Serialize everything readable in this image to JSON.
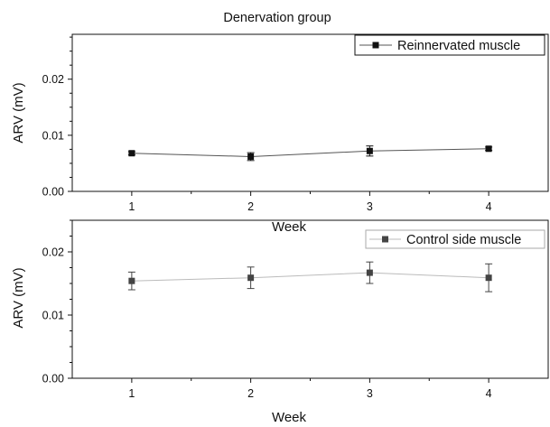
{
  "figure_title": "Denervation group",
  "chart_data": [
    {
      "type": "line",
      "title": "",
      "xlabel": "Week",
      "ylabel": "ARV (mV)",
      "x": [
        1,
        2,
        3,
        4
      ],
      "xlim": [
        0.5,
        4.5
      ],
      "ylim": [
        0,
        0.028
      ],
      "x_ticks": [
        "1",
        "2",
        "3",
        "4"
      ],
      "y_ticks": [
        "0.00",
        "0.01",
        "0.02"
      ],
      "y_tick_values": [
        0,
        0.01,
        0.02
      ],
      "grid": false,
      "legend_position": "top-right",
      "series": [
        {
          "name": "Reinnervated muscle",
          "values": [
            0.0068,
            0.0062,
            0.0072,
            0.0076
          ],
          "errors": [
            0.0003,
            0.0007,
            0.0009,
            0.0003
          ],
          "color": "#111111",
          "line_color": "#555555",
          "marker": "square"
        }
      ]
    },
    {
      "type": "line",
      "title": "",
      "xlabel": "Week",
      "ylabel": "ARV (mV)",
      "x": [
        1,
        2,
        3,
        4
      ],
      "xlim": [
        0.5,
        4.5
      ],
      "ylim": [
        0,
        0.025
      ],
      "x_ticks": [
        "1",
        "2",
        "3",
        "4"
      ],
      "y_ticks": [
        "0.00",
        "0.01",
        "0.02"
      ],
      "y_tick_values": [
        0,
        0.01,
        0.02
      ],
      "grid": false,
      "legend_position": "top-right",
      "series": [
        {
          "name": "Control side muscle",
          "values": [
            0.0154,
            0.0159,
            0.0167,
            0.0159
          ],
          "errors": [
            0.0014,
            0.0017,
            0.0017,
            0.0022
          ],
          "color": "#444444",
          "line_color": "#bbbbbb",
          "marker": "square"
        }
      ]
    }
  ]
}
